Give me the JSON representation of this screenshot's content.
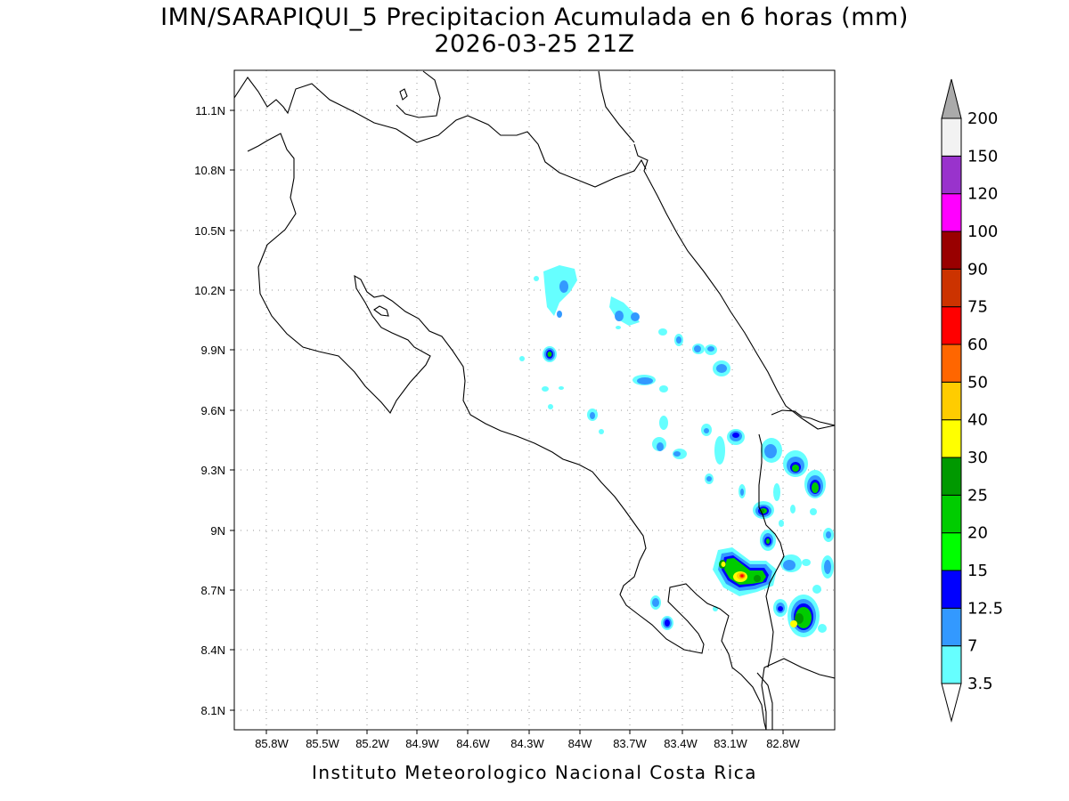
{
  "title": {
    "line1": "IMN/SARAPIQUI_5 Precipitacion Acumulada en 6 horas (mm)",
    "line2": "2026-03-25 21Z"
  },
  "footer": "Instituto Meteorologico Nacional Costa Rica",
  "map": {
    "lon_range": [
      -86.0,
      -82.55
    ],
    "lat_range": [
      8.0,
      11.3
    ],
    "x_ticks": [
      "85.8W",
      "85.5W",
      "85.2W",
      "84.9W",
      "84.6W",
      "84.3W",
      "84W",
      "83.7W",
      "83.4W",
      "83.1W",
      "82.8W"
    ],
    "x_tick_values": [
      -85.8,
      -85.5,
      -85.2,
      -84.9,
      -84.6,
      -84.3,
      -84.0,
      -83.7,
      -83.4,
      -83.1,
      -82.8
    ],
    "y_ticks": [
      "11.1N",
      "10.8N",
      "10.5N",
      "10.2N",
      "9.9N",
      "9.6N",
      "9.3N",
      "9N",
      "8.7N",
      "8.4N",
      "8.1N"
    ],
    "y_tick_values": [
      11.1,
      10.8,
      10.5,
      10.2,
      9.9,
      9.6,
      9.3,
      9.0,
      8.7,
      8.4,
      8.1
    ],
    "grid": true
  },
  "colorbar": {
    "levels": [
      "3.5",
      "7",
      "12.5",
      "15",
      "20",
      "25",
      "30",
      "40",
      "50",
      "60",
      "75",
      "90",
      "100",
      "120",
      "150",
      "200"
    ],
    "colors": [
      "#66ffff",
      "#3399ff",
      "#0000ff",
      "#00ff00",
      "#00cc00",
      "#009900",
      "#ffff00",
      "#ffcc00",
      "#ff6600",
      "#ff0000",
      "#cc3300",
      "#990000",
      "#ff00ff",
      "#9933cc",
      "#f2f2f2",
      "#999999"
    ],
    "under_color": "#ffffff",
    "over_color": "#aaaaaa"
  }
}
